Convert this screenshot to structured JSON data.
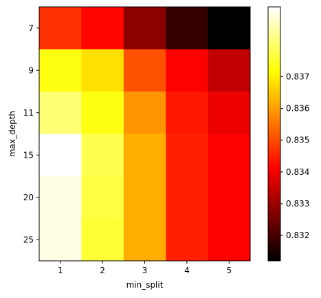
{
  "chart_data": {
    "type": "heatmap",
    "title": "",
    "xlabel": "min_split",
    "ylabel": "max_depth",
    "x_categories": [
      "1",
      "2",
      "3",
      "4",
      "5"
    ],
    "y_categories": [
      "7",
      "9",
      "11",
      "15",
      "20",
      "25"
    ],
    "values": [
      [
        0.8347,
        0.8342,
        0.8328,
        0.8318,
        0.8311
      ],
      [
        0.8373,
        0.8368,
        0.8351,
        0.8341,
        0.8334
      ],
      [
        0.8381,
        0.8373,
        0.8359,
        0.8344,
        0.8339
      ],
      [
        0.8392,
        0.8378,
        0.8362,
        0.8345,
        0.8341
      ],
      [
        0.839,
        0.8377,
        0.8362,
        0.8345,
        0.8341
      ],
      [
        0.839,
        0.8376,
        0.8362,
        0.8345,
        0.8341
      ]
    ],
    "colormap": "hot",
    "colorbar": {
      "vmin": 0.8312,
      "vmax": 0.8392,
      "ticks": [
        0.832,
        0.833,
        0.834,
        0.835,
        0.836,
        0.837
      ],
      "tick_labels": [
        "0.832",
        "0.833",
        "0.834",
        "0.835",
        "0.836",
        "0.837"
      ]
    },
    "grid": false
  }
}
